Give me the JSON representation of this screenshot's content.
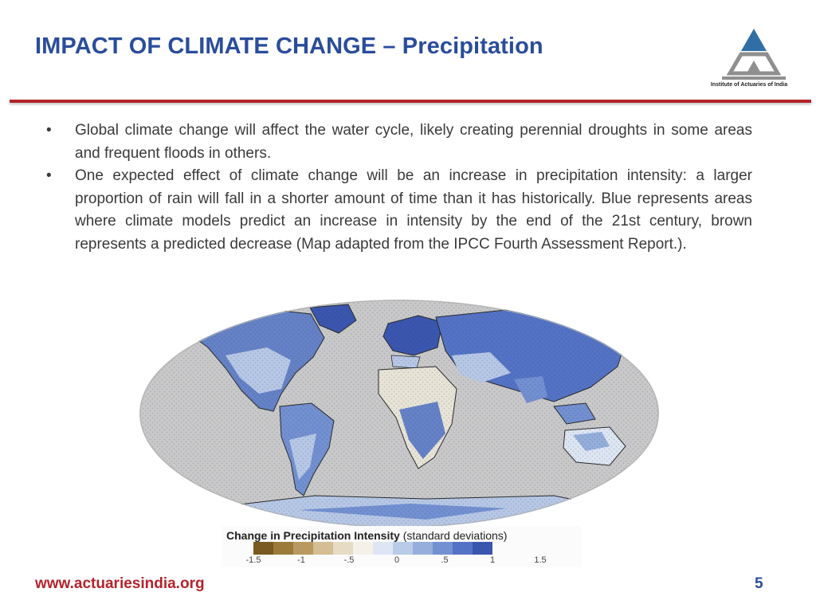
{
  "slide": {
    "title": "IMPACT OF CLIMATE CHANGE – Precipitation",
    "logo_caption": "Institute of Actuaries of India",
    "bullet_symbol": "•",
    "bullets": [
      "Global climate change will affect the water cycle, likely creating perennial droughts in some areas and frequent floods in others.",
      "One expected effect of climate change will be an increase in precipitation intensity: a larger proportion of rain will fall in a shorter amount of time than it has historically. Blue represents areas where climate models predict an increase in intensity by the end of the 21st century, brown represents a predicted decrease (Map adapted from the IPCC Fourth Assessment Report.)."
    ],
    "footer_url": "www.actuariesindia.org",
    "page_number": "5"
  },
  "figure": {
    "legend_title": "Change in Precipitation Intensity",
    "legend_subtitle": "(standard deviations)",
    "legend_colors": [
      "#7a5a21",
      "#9b7a3a",
      "#b89a60",
      "#d3bf93",
      "#e6dcc4",
      "#f4f1e9",
      "#dde6f2",
      "#b9cbe7",
      "#95aedc",
      "#7390d1",
      "#5473c4",
      "#3b56ae"
    ],
    "legend_ticks": [
      "-1.5",
      "-1",
      "-.5",
      "0",
      ".5",
      "1",
      "1.5"
    ],
    "colors": {
      "title_blue": "#2a4d9b",
      "rule_red": "#b4232a",
      "ocean_gray": "#c9c9c9",
      "land_blue": "#6582c6",
      "land_light": "#b7c8e6",
      "land_pale": "#e8e4d6"
    }
  }
}
